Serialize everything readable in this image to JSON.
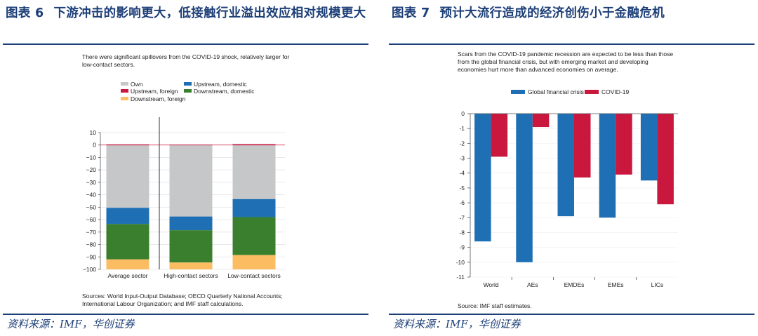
{
  "left": {
    "figure_label": "图表 6",
    "figure_title": "下游冲击的影响更大，低接触行业溢出效应相对规模更大",
    "subtitle_lines": [
      "There were significant spillovers from the COVID-19 shock, relatively larger for",
      "low-contact sectors."
    ],
    "source_lines": [
      "Sources: World Input-Output Database; OECD Quarterly National Accounts;",
      "International Labour Organization; and IMF staff calculations."
    ],
    "footer": "资料来源：IMF，华创证券"
  },
  "right": {
    "figure_label": "图表 7",
    "figure_title": "预计大流行造成的经济创伤小于金融危机",
    "subtitle_lines": [
      "Scars from the COVID-19 pandemic recession are expected to be less than those",
      "from the global financial crisis, but with emerging market and developing",
      "economies hurt more than advanced economies on average."
    ],
    "source_lines": [
      "Source: IMF staff estimates."
    ],
    "footer": "资料来源：IMF，华创证券"
  },
  "chart_data": [
    {
      "type": "bar",
      "stacked": true,
      "categories": [
        "Average sector",
        "High-contact sectors",
        "Low-contact sectors"
      ],
      "series": [
        {
          "name": "Own",
          "color": "#c6c7c9",
          "values": [
            -50.5,
            -57.5,
            -43.5
          ]
        },
        {
          "name": "Upstream, domestic",
          "color": "#1f6fb4",
          "values": [
            -13,
            -11,
            -14.5
          ]
        },
        {
          "name": "Upstream, foreign",
          "color": "#c9173e",
          "values": [
            0.5,
            0.3,
            0.7
          ]
        },
        {
          "name": "Downstream, domestic",
          "color": "#3a7f2e",
          "values": [
            -28.5,
            -26,
            -30.5
          ]
        },
        {
          "name": "Downstream, foreign",
          "color": "#fbbc62",
          "values": [
            -8,
            -5.5,
            -11.5
          ]
        }
      ],
      "ylim": [
        -100,
        10
      ],
      "yticks": [
        "10",
        "0",
        "−10",
        "−20",
        "−30",
        "−40",
        "−50",
        "−60",
        "−70",
        "−80",
        "−90",
        "−100"
      ],
      "legend_position": "top-left"
    },
    {
      "type": "bar",
      "categories": [
        "World",
        "AEs",
        "EMDEs",
        "EMEs",
        "LICs"
      ],
      "series": [
        {
          "name": "Global financial crisis",
          "color": "#1f6fb4",
          "values": [
            -8.6,
            -10,
            -6.9,
            -7,
            -4.5
          ]
        },
        {
          "name": "COVID-19",
          "color": "#c9173e",
          "values": [
            -2.9,
            -0.9,
            -4.3,
            -4.1,
            -6.1
          ]
        }
      ],
      "ylim": [
        -11,
        0
      ],
      "yticks": [
        "0",
        "-1",
        "-2",
        "-3",
        "-4",
        "-5",
        "-6",
        "-7",
        "-8",
        "-9",
        "-10",
        "-11"
      ],
      "legend_position": "top-center"
    }
  ]
}
